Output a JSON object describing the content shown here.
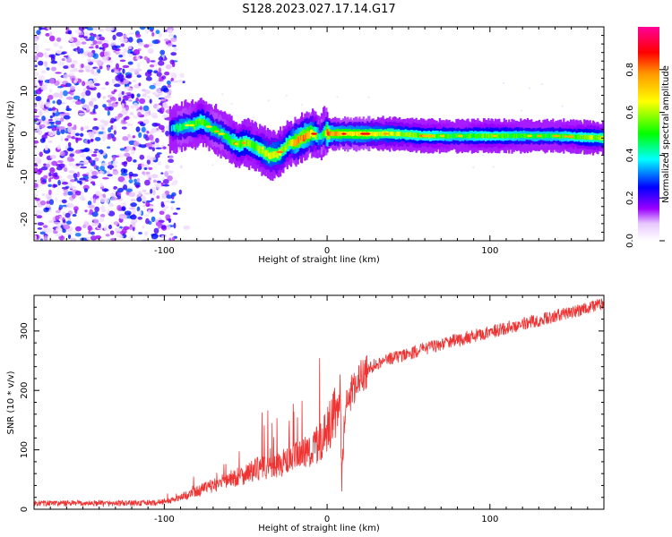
{
  "figure_title": "S128.2023.027.17.14.G17",
  "chart_data": [
    {
      "type": "heatmap",
      "title": "S128.2023.027.17.14.G17",
      "xlabel": "Height of straight line (km)",
      "ylabel": "Frequency (Hz)",
      "xlim": [
        -180,
        170
      ],
      "ylim": [
        -25,
        25
      ],
      "x_ticks": [
        -100,
        0,
        100
      ],
      "y_ticks": [
        -20,
        -10,
        0,
        10,
        20
      ],
      "x_tick_labels": [
        "-100",
        "0",
        "100"
      ],
      "y_tick_labels": [
        "-20",
        "-10",
        "0",
        "10",
        "20"
      ],
      "colorbar": {
        "label": "Normalized spectral amplitude",
        "range": [
          0.0,
          1.0
        ],
        "ticks": [
          0.0,
          0.2,
          0.4,
          0.6,
          0.8
        ],
        "tick_labels": [
          "0.0",
          "0.2",
          "0.4",
          "0.6",
          "0.8"
        ],
        "colors": [
          "#ffffff",
          "#9b00ff",
          "#0000ff",
          "#00ffff",
          "#00ff00",
          "#ffff00",
          "#ff9900",
          "#ff0000",
          "#ff0099"
        ]
      },
      "noise_region_x": [
        -180,
        -95
      ],
      "ridge": {
        "x": [
          -97,
          -92,
          -87,
          -82,
          -78,
          -74,
          -70,
          -65,
          -60,
          -55,
          -50,
          -45,
          -40,
          -36,
          -32,
          -28,
          -24,
          -20,
          -16,
          -12,
          -8,
          -5,
          -2,
          0,
          2,
          5,
          10,
          20,
          40,
          60,
          80,
          100,
          120,
          140,
          170
        ],
        "y": [
          1,
          1.5,
          2,
          2,
          3,
          2,
          1,
          0,
          -1.5,
          -2.5,
          -2,
          -3,
          -4,
          -5,
          -5,
          -4,
          -2,
          -2,
          -1,
          0,
          0,
          -1,
          0.5,
          0,
          0,
          0,
          0,
          0,
          0,
          -0.5,
          -0.5,
          -0.5,
          -0.5,
          -0.5,
          -1
        ],
        "amp": [
          0.3,
          0.45,
          0.45,
          0.5,
          0.55,
          0.5,
          0.45,
          0.45,
          0.5,
          0.55,
          0.55,
          0.5,
          0.6,
          0.65,
          0.65,
          0.6,
          0.55,
          0.75,
          0.8,
          0.75,
          0.6,
          0.4,
          0.5,
          0.9,
          0.75,
          0.75,
          0.7,
          0.7,
          0.6,
          0.55,
          0.5,
          0.55,
          0.5,
          0.5,
          0.6
        ]
      }
    },
    {
      "type": "line",
      "xlabel": "Height of straight line (km)",
      "ylabel": "SNR (10 * v/v)",
      "xlim": [
        -180,
        170
      ],
      "ylim": [
        0,
        360
      ],
      "x_ticks": [
        -100,
        0,
        100
      ],
      "y_ticks": [
        0,
        100,
        200,
        300
      ],
      "x_tick_labels": [
        "-100",
        "0",
        "100"
      ],
      "y_tick_labels": [
        "0",
        "100",
        "200",
        "300"
      ],
      "series": [
        {
          "color": "#ee3333",
          "x": [
            -180,
            -160,
            -140,
            -120,
            -105,
            -95,
            -90,
            -85,
            -80,
            -75,
            -70,
            -65,
            -60,
            -55,
            -50,
            -45,
            -40,
            -35,
            -30,
            -25,
            -20,
            -15,
            -10,
            -5,
            0,
            3,
            5,
            7,
            8,
            9,
            10,
            12,
            15,
            20,
            25,
            30,
            40,
            50,
            60,
            70,
            80,
            90,
            100,
            110,
            120,
            130,
            140,
            150,
            160,
            170
          ],
          "y": [
            10,
            10,
            10,
            10,
            11,
            15,
            20,
            25,
            30,
            35,
            40,
            45,
            50,
            55,
            60,
            65,
            70,
            70,
            75,
            80,
            85,
            95,
            100,
            110,
            130,
            150,
            160,
            165,
            200,
            60,
            120,
            170,
            200,
            220,
            235,
            245,
            255,
            262,
            270,
            278,
            285,
            292,
            298,
            305,
            312,
            318,
            325,
            332,
            340,
            345
          ]
        }
      ]
    }
  ]
}
